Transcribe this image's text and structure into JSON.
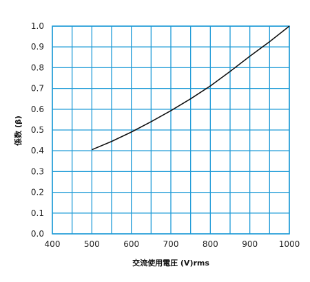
{
  "chart_data": {
    "type": "line",
    "title": "",
    "xlabel": "交流使用電圧 (V)rms",
    "ylabel": "係数 (β)",
    "xlim": [
      400,
      1000
    ],
    "ylim": [
      0.0,
      1.0
    ],
    "xticks": [
      400,
      450,
      500,
      550,
      600,
      650,
      700,
      750,
      800,
      850,
      900,
      950,
      1000
    ],
    "xtick_labels": [
      "400",
      "500",
      "600",
      "700",
      "800",
      "900",
      "1000"
    ],
    "xtick_label_values": [
      400,
      500,
      600,
      700,
      800,
      900,
      1000
    ],
    "yticks": [
      0.0,
      0.1,
      0.2,
      0.3,
      0.4,
      0.5,
      0.6,
      0.7,
      0.8,
      0.9,
      1.0
    ],
    "ytick_labels": [
      "0.0",
      "0.1",
      "0.2",
      "0.3",
      "0.4",
      "0.5",
      "0.6",
      "0.7",
      "0.8",
      "0.9",
      "1.0"
    ],
    "grid": true,
    "series": [
      {
        "x": [
          500,
          550,
          600,
          650,
          700,
          750,
          800,
          850,
          900,
          950,
          1000
        ],
        "y": [
          0.405,
          0.445,
          0.49,
          0.54,
          0.593,
          0.65,
          0.712,
          0.782,
          0.855,
          0.925,
          1.0
        ]
      }
    ]
  },
  "colors": {
    "grid": "#1e9bd7",
    "axes_frame": "#1e9bd7",
    "curve": "#111111",
    "background": "#ffffff"
  }
}
